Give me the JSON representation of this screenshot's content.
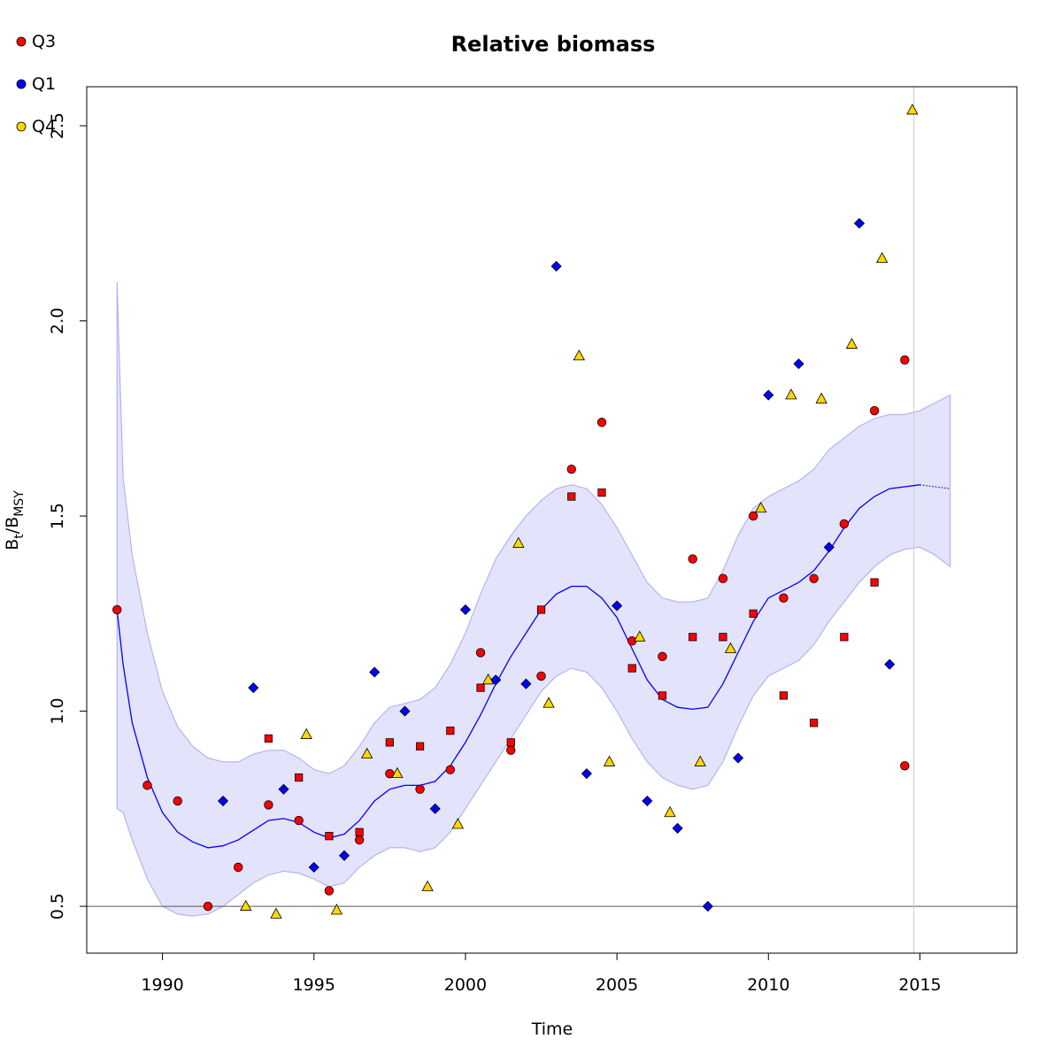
{
  "chart_data": {
    "type": "scatter",
    "title": "Relative biomass",
    "xlabel": "Time",
    "ylabel": "Bt/BMSY",
    "ylabel_main": "B",
    "ylabel_sub1": "t",
    "ylabel_div": "/B",
    "ylabel_sub2": "MSY",
    "xlim": [
      1987.5,
      2018.2
    ],
    "ylim": [
      0.38,
      2.6
    ],
    "xticks": [
      "1990",
      "1995",
      "2000",
      "2005",
      "2010",
      "2015"
    ],
    "yticks": [
      "0.5",
      "1.0",
      "1.5",
      "2.0",
      "2.5"
    ],
    "grid": false,
    "legend_position": "top-left",
    "reference_line_y": 0.5,
    "vertical_line_x": 2014.8,
    "legend": [
      {
        "label": "Q3",
        "color": "#ff0000"
      },
      {
        "label": "Q1",
        "color": "#0000ff"
      },
      {
        "label": "Q4",
        "color": "#ffd700"
      }
    ],
    "band": {
      "x": [
        1988.5,
        1988.7,
        1989.0,
        1989.5,
        1990.0,
        1990.5,
        1991.0,
        1991.5,
        1992.0,
        1992.5,
        1993.0,
        1993.5,
        1994.0,
        1994.5,
        1995.0,
        1995.5,
        1996.0,
        1996.5,
        1997.0,
        1997.5,
        1998.0,
        1998.5,
        1999.0,
        1999.5,
        2000.0,
        2000.5,
        2001.0,
        2001.5,
        2002.0,
        2002.5,
        2003.0,
        2003.5,
        2004.0,
        2004.5,
        2005.0,
        2005.5,
        2006.0,
        2006.5,
        2007.0,
        2007.5,
        2008.0,
        2008.5,
        2009.0,
        2009.5,
        2010.0,
        2010.5,
        2011.0,
        2011.5,
        2012.0,
        2012.5,
        2013.0,
        2013.5,
        2014.0,
        2014.5,
        2015.0,
        2015.5,
        2016.0
      ],
      "upper": [
        2.1,
        1.6,
        1.4,
        1.2,
        1.05,
        0.96,
        0.91,
        0.88,
        0.87,
        0.87,
        0.89,
        0.9,
        0.9,
        0.88,
        0.85,
        0.84,
        0.86,
        0.91,
        0.97,
        1.01,
        1.02,
        1.03,
        1.06,
        1.12,
        1.2,
        1.3,
        1.39,
        1.45,
        1.5,
        1.54,
        1.57,
        1.58,
        1.57,
        1.53,
        1.47,
        1.4,
        1.33,
        1.29,
        1.28,
        1.28,
        1.29,
        1.36,
        1.45,
        1.52,
        1.55,
        1.57,
        1.59,
        1.62,
        1.67,
        1.7,
        1.73,
        1.75,
        1.76,
        1.76,
        1.77,
        1.79,
        1.81
      ],
      "lower": [
        0.75,
        0.74,
        0.67,
        0.57,
        0.5,
        0.48,
        0.475,
        0.48,
        0.5,
        0.53,
        0.56,
        0.58,
        0.59,
        0.585,
        0.57,
        0.55,
        0.56,
        0.6,
        0.63,
        0.65,
        0.65,
        0.64,
        0.65,
        0.69,
        0.75,
        0.81,
        0.87,
        0.93,
        0.99,
        1.05,
        1.09,
        1.11,
        1.1,
        1.06,
        1.0,
        0.93,
        0.87,
        0.83,
        0.81,
        0.8,
        0.81,
        0.87,
        0.96,
        1.04,
        1.09,
        1.11,
        1.13,
        1.17,
        1.23,
        1.28,
        1.33,
        1.37,
        1.4,
        1.415,
        1.42,
        1.4,
        1.37
      ]
    },
    "trend": {
      "x": [
        1988.5,
        1988.7,
        1989.0,
        1989.5,
        1990.0,
        1990.5,
        1991.0,
        1991.5,
        1992.0,
        1992.5,
        1993.0,
        1993.5,
        1994.0,
        1994.5,
        1995.0,
        1995.5,
        1996.0,
        1996.5,
        1997.0,
        1997.5,
        1998.0,
        1998.5,
        1999.0,
        1999.5,
        2000.0,
        2000.5,
        2001.0,
        2001.5,
        2002.0,
        2002.5,
        2003.0,
        2003.5,
        2004.0,
        2004.5,
        2005.0,
        2005.5,
        2006.0,
        2006.5,
        2007.0,
        2007.5,
        2008.0,
        2008.5,
        2009.0,
        2009.5,
        2010.0,
        2010.5,
        2011.0,
        2011.5,
        2012.0,
        2012.5,
        2013.0,
        2013.5,
        2014.0,
        2014.5,
        2015.0
      ],
      "y": [
        1.26,
        1.12,
        0.97,
        0.83,
        0.74,
        0.69,
        0.665,
        0.65,
        0.655,
        0.67,
        0.695,
        0.72,
        0.725,
        0.715,
        0.69,
        0.675,
        0.685,
        0.72,
        0.77,
        0.8,
        0.81,
        0.81,
        0.82,
        0.86,
        0.92,
        0.99,
        1.07,
        1.14,
        1.2,
        1.26,
        1.3,
        1.32,
        1.32,
        1.29,
        1.24,
        1.16,
        1.08,
        1.03,
        1.01,
        1.005,
        1.01,
        1.07,
        1.15,
        1.23,
        1.29,
        1.31,
        1.33,
        1.36,
        1.41,
        1.47,
        1.52,
        1.55,
        1.57,
        1.575,
        1.58
      ]
    },
    "forecast": {
      "x": [
        2015.0,
        2015.5,
        2016.0
      ],
      "y": [
        1.58,
        1.575,
        1.57
      ]
    },
    "series": [
      {
        "name": "Q3",
        "marker": "circle",
        "color": "#ff0000",
        "x": [
          1988.5,
          1989.5,
          1990.5,
          1991.5,
          1992.5,
          1993.5,
          1994.5,
          1995.5,
          1996.5,
          1997.5,
          1998.5,
          1999.5,
          2000.5,
          2001.5,
          2002.5,
          2003.5,
          2004.5,
          2005.5,
          2006.5,
          2007.5,
          2008.5,
          2009.5,
          2010.5,
          2011.5,
          2012.5,
          2013.5,
          2014.5,
          2014.5
        ],
        "y": [
          1.26,
          0.81,
          0.77,
          0.5,
          0.6,
          0.76,
          0.72,
          0.54,
          0.67,
          0.84,
          0.8,
          0.85,
          1.15,
          0.9,
          1.09,
          1.62,
          1.74,
          1.18,
          1.14,
          1.39,
          1.34,
          1.5,
          1.29,
          1.34,
          1.48,
          1.77,
          1.9,
          0.86
        ]
      },
      {
        "name": "",
        "marker": "square",
        "color": "#ff0000",
        "x": [
          1993.5,
          1994.5,
          1995.5,
          1996.5,
          1997.5,
          1998.5,
          1999.5,
          2000.5,
          2001.5,
          2002.5,
          2003.5,
          2004.5,
          2005.5,
          2006.5,
          2007.5,
          2008.5,
          2009.5,
          2010.5,
          2011.5,
          2012.5,
          2013.5
        ],
        "y": [
          0.93,
          0.83,
          0.68,
          0.69,
          0.92,
          0.91,
          0.95,
          1.06,
          0.92,
          1.26,
          1.55,
          1.56,
          1.11,
          1.04,
          1.19,
          1.19,
          1.25,
          1.04,
          0.97,
          1.19,
          1.33
        ]
      },
      {
        "name": "Q1",
        "marker": "diamond",
        "color": "#0000ff",
        "x": [
          1992.0,
          1993.0,
          1994.0,
          1995.0,
          1996.0,
          1997.0,
          1998.0,
          1999.0,
          2000.0,
          2001.0,
          2002.0,
          2003.0,
          2004.0,
          2005.0,
          2006.0,
          2007.0,
          2008.0,
          2009.0,
          2010.0,
          2011.0,
          2012.0,
          2013.0,
          2014.0
        ],
        "y": [
          0.77,
          1.06,
          0.8,
          0.6,
          0.63,
          1.1,
          1.0,
          0.75,
          1.26,
          1.08,
          1.07,
          2.14,
          0.84,
          1.27,
          0.77,
          0.7,
          0.5,
          0.88,
          1.81,
          1.89,
          1.42,
          2.25,
          1.12
        ]
      },
      {
        "name": "Q4",
        "marker": "triangle",
        "color": "#ffd700",
        "x": [
          1992.75,
          1993.75,
          1994.75,
          1995.75,
          1996.75,
          1997.75,
          1998.75,
          1999.75,
          2000.75,
          2001.75,
          2002.75,
          2003.75,
          2004.75,
          2005.75,
          2006.75,
          2007.75,
          2008.75,
          2009.75,
          2010.75,
          2011.75,
          2012.75,
          2013.75,
          2014.75
        ],
        "y": [
          0.5,
          0.48,
          0.94,
          0.49,
          0.89,
          0.84,
          0.55,
          0.71,
          1.08,
          1.43,
          1.02,
          1.91,
          0.87,
          1.19,
          0.74,
          0.87,
          1.16,
          1.52,
          1.81,
          1.8,
          1.94,
          2.16,
          2.54
        ]
      }
    ]
  }
}
